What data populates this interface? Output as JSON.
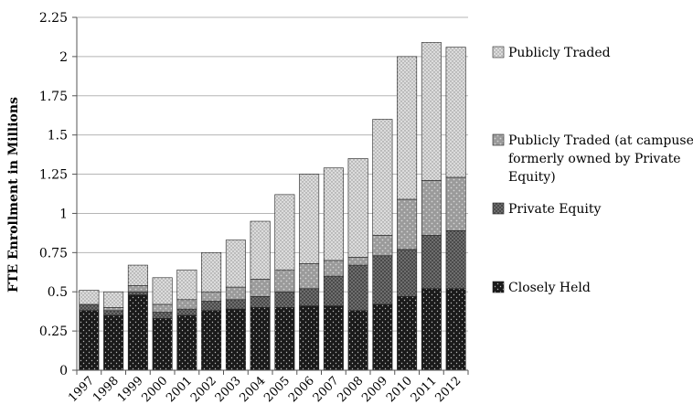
{
  "chart_data": {
    "type": "bar",
    "stacked": true,
    "title": "",
    "xlabel": "",
    "ylabel": "FTE Enrollment in Millions",
    "ylim": [
      0,
      2.25
    ],
    "yticks": [
      "0",
      "0.25",
      "0.5",
      "0.75",
      "1",
      "1.25",
      "1.5",
      "1.75",
      "2",
      "2.25"
    ],
    "grid": "horizontal",
    "legend": "right",
    "categories": [
      "1997",
      "1998",
      "1999",
      "2000",
      "2001",
      "2002",
      "2003",
      "2004",
      "2005",
      "2006",
      "2007",
      "2008",
      "2009",
      "2010",
      "2011",
      "2012"
    ],
    "series": [
      {
        "name": "Closely Held",
        "values": [
          0.38,
          0.35,
          0.48,
          0.33,
          0.35,
          0.38,
          0.39,
          0.4,
          0.4,
          0.41,
          0.41,
          0.38,
          0.42,
          0.47,
          0.52,
          0.52
        ],
        "pattern": "closely-held"
      },
      {
        "name": "Private Equity",
        "values": [
          0.04,
          0.03,
          0.02,
          0.04,
          0.04,
          0.06,
          0.06,
          0.07,
          0.1,
          0.11,
          0.19,
          0.29,
          0.31,
          0.3,
          0.34,
          0.37
        ],
        "pattern": "private-equity"
      },
      {
        "name": "Publicly Traded (at campuses formerly owned by Private Equity)",
        "values": [
          0.0,
          0.02,
          0.04,
          0.05,
          0.06,
          0.06,
          0.08,
          0.11,
          0.14,
          0.16,
          0.1,
          0.05,
          0.13,
          0.32,
          0.35,
          0.34
        ],
        "pattern": "pt-former-pe"
      },
      {
        "name": "Publicly Traded",
        "values": [
          0.09,
          0.1,
          0.13,
          0.17,
          0.19,
          0.25,
          0.3,
          0.37,
          0.48,
          0.57,
          0.59,
          0.63,
          0.74,
          0.91,
          0.88,
          0.83
        ],
        "pattern": "publicly-traded"
      }
    ],
    "legend_entries": [
      {
        "lines": [
          "Publicly Traded"
        ],
        "pattern": "publicly-traded"
      },
      {
        "lines": [
          "Publicly Traded (at campuses",
          "formerly owned by Private",
          "Equity)"
        ],
        "pattern": "pt-former-pe"
      },
      {
        "lines": [
          "Private Equity"
        ],
        "pattern": "private-equity"
      },
      {
        "lines": [
          "Closely Held"
        ],
        "pattern": "closely-held"
      }
    ]
  }
}
